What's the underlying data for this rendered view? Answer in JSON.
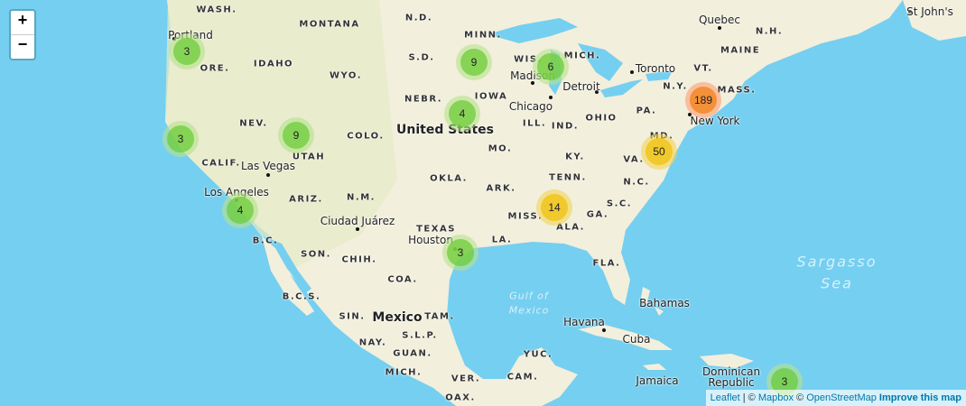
{
  "colors": {
    "ocean": "#75cff0",
    "land": "#f2efdc",
    "land_west": "#e6ebc6"
  },
  "zoom": {
    "in": "+",
    "out": "−"
  },
  "attribution": {
    "leaflet": "Leaflet",
    "sep": " | © ",
    "mapbox": "Mapbox",
    "sep2": " © ",
    "osm": "OpenStreetMap",
    "improve": "Improve this map"
  },
  "clusters": [
    {
      "count": "3",
      "size": "small"
    },
    {
      "count": "9",
      "size": "small"
    },
    {
      "count": "6",
      "size": "small"
    },
    {
      "count": "189",
      "size": "large"
    },
    {
      "count": "4",
      "size": "small"
    },
    {
      "count": "9",
      "size": "small"
    },
    {
      "count": "3",
      "size": "small"
    },
    {
      "count": "50",
      "size": "medium"
    },
    {
      "count": "14",
      "size": "medium"
    },
    {
      "count": "4",
      "size": "small"
    },
    {
      "count": "3",
      "size": "small"
    },
    {
      "count": "3",
      "size": "small"
    }
  ],
  "labels": {
    "states": [
      "WASH.",
      "MONTANA",
      "N.D.",
      "MINN.",
      "WIS.",
      "MICH.",
      "IDAHO",
      "WYO.",
      "S.D.",
      "ORE.",
      "NEBR.",
      "IOWA",
      "NEV.",
      "UTAH",
      "COLO.",
      "ILL.",
      "IND.",
      "OHIO",
      "PA.",
      "N.Y.",
      "VT.",
      "MAINE",
      "N.H.",
      "MASS.",
      "MD.",
      "VA.",
      "KY.",
      "MO.",
      "CALIF.",
      "ARIZ.",
      "N.M.",
      "OKLA.",
      "ARK.",
      "TENN.",
      "N.C.",
      "S.C.",
      "GA.",
      "MISS.",
      "ALA.",
      "TEXAS",
      "LA.",
      "FLA.",
      "B.C.",
      "SON.",
      "CHIH.",
      "COA.",
      "B.C.S.",
      "SIN.",
      "TAM.",
      "S.L.P.",
      "NAY.",
      "GUAN.",
      "MICH.",
      "VER.",
      "OAX.",
      "YUC.",
      "CAM."
    ],
    "cities": [
      "Portland",
      "Quebec",
      "St John's",
      "Toronto",
      "Madison",
      "Detroit",
      "Chicago",
      "New York",
      "Las Vegas",
      "Los Angeles",
      "Ciudad Juárez",
      "Houston",
      "Bahamas",
      "Havana",
      "Cuba",
      "Jamaica",
      "Dominican",
      "Republic"
    ],
    "countries": [
      "United States",
      "Mexico"
    ],
    "seas": [
      "Sargasso",
      "Sea",
      "Gulf of",
      "Mexico"
    ]
  }
}
